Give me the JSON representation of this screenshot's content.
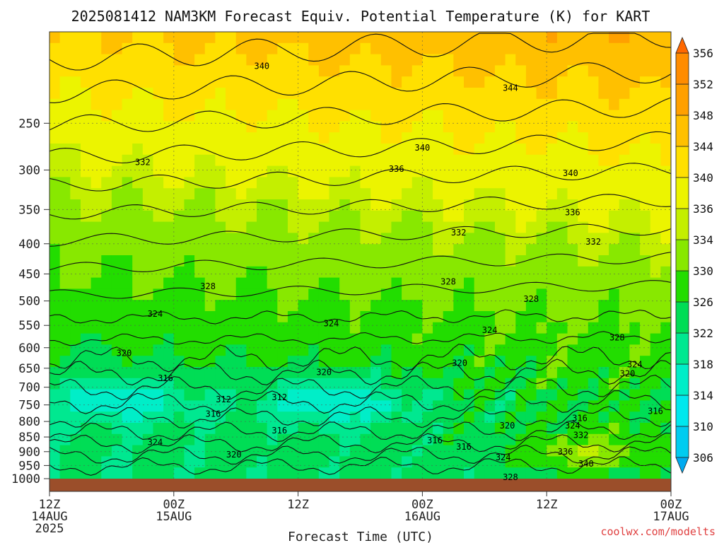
{
  "title": "2025081412 NAM3KM Forecast Equiv. Potential Temperature (K) for KART",
  "credit": "coolwx.com/modelts",
  "chart_data": {
    "type": "heatmap",
    "title": "2025081412 NAM3KM Forecast Equiv. Potential Temperature (K) for KART",
    "xlabel": "Forecast Time (UTC)",
    "ylabel": "",
    "x_range_hours": [
      0,
      60
    ],
    "y_range_hpa": [
      1000,
      175
    ],
    "y_scale": "log-pressure",
    "y_ticks": [
      250,
      300,
      350,
      400,
      450,
      500,
      550,
      600,
      650,
      700,
      750,
      800,
      850,
      900,
      950,
      1000
    ],
    "x_ticks": [
      {
        "hour": 0,
        "line1": "12Z",
        "line2": "14AUG",
        "line3": "2025"
      },
      {
        "hour": 12,
        "line1": "00Z",
        "line2": "15AUG",
        "line3": ""
      },
      {
        "hour": 24,
        "line1": "12Z",
        "line2": "",
        "line3": ""
      },
      {
        "hour": 36,
        "line1": "00Z",
        "line2": "16AUG",
        "line3": ""
      },
      {
        "hour": 48,
        "line1": "12Z",
        "line2": "",
        "line3": ""
      },
      {
        "hour": 60,
        "line1": "00Z",
        "line2": "17AUG",
        "line3": ""
      }
    ],
    "grid": true,
    "colorbar": {
      "levels": [
        306,
        310,
        314,
        318,
        322,
        326,
        330,
        334,
        336,
        340,
        344,
        348,
        352,
        356
      ],
      "colors": [
        "#00aaf0",
        "#00ccf0",
        "#00e8ee",
        "#00eec8",
        "#00e890",
        "#00dd55",
        "#22dd00",
        "#88e800",
        "#c4ef00",
        "#ecf400",
        "#ffe000",
        "#ffc000",
        "#ffa000",
        "#ff8c00",
        "#ff6800"
      ],
      "placement": "right"
    },
    "contour_labels": [
      {
        "t": 20.5,
        "p": 200,
        "v": "340"
      },
      {
        "t": 44.5,
        "p": 218,
        "v": "344"
      },
      {
        "t": 36.0,
        "p": 275,
        "v": "340"
      },
      {
        "t": 33.5,
        "p": 299,
        "v": "336"
      },
      {
        "t": 50.3,
        "p": 304,
        "v": "340"
      },
      {
        "t": 9.0,
        "p": 291,
        "v": "332"
      },
      {
        "t": 50.5,
        "p": 354,
        "v": "336"
      },
      {
        "t": 39.5,
        "p": 383,
        "v": "332"
      },
      {
        "t": 52.5,
        "p": 397,
        "v": "332"
      },
      {
        "t": 15.3,
        "p": 472,
        "v": "328"
      },
      {
        "t": 38.5,
        "p": 464,
        "v": "328"
      },
      {
        "t": 46.5,
        "p": 496,
        "v": "328"
      },
      {
        "t": 54.8,
        "p": 577,
        "v": "328"
      },
      {
        "t": 10.2,
        "p": 526,
        "v": "324"
      },
      {
        "t": 27.2,
        "p": 546,
        "v": "324"
      },
      {
        "t": 42.5,
        "p": 560,
        "v": "324"
      },
      {
        "t": 56.5,
        "p": 641,
        "v": "324"
      },
      {
        "t": 7.2,
        "p": 613,
        "v": "320"
      },
      {
        "t": 26.5,
        "p": 660,
        "v": "320"
      },
      {
        "t": 39.6,
        "p": 637,
        "v": "320"
      },
      {
        "t": 55.8,
        "p": 664,
        "v": "320"
      },
      {
        "t": 11.2,
        "p": 676,
        "v": "316"
      },
      {
        "t": 15.8,
        "p": 777,
        "v": "316"
      },
      {
        "t": 22.2,
        "p": 829,
        "v": "316"
      },
      {
        "t": 37.2,
        "p": 862,
        "v": "316"
      },
      {
        "t": 40.0,
        "p": 883,
        "v": "316"
      },
      {
        "t": 51.2,
        "p": 790,
        "v": "316"
      },
      {
        "t": 58.5,
        "p": 768,
        "v": "316"
      },
      {
        "t": 16.8,
        "p": 734,
        "v": "312"
      },
      {
        "t": 22.2,
        "p": 728,
        "v": "312"
      },
      {
        "t": 10.2,
        "p": 867,
        "v": "324"
      },
      {
        "t": 17.8,
        "p": 910,
        "v": "320"
      },
      {
        "t": 44.2,
        "p": 813,
        "v": "320"
      },
      {
        "t": 50.5,
        "p": 813,
        "v": "324"
      },
      {
        "t": 51.3,
        "p": 844,
        "v": "332"
      },
      {
        "t": 49.8,
        "p": 900,
        "v": "336"
      },
      {
        "t": 51.8,
        "p": 944,
        "v": "340"
      },
      {
        "t": 43.8,
        "p": 920,
        "v": "324"
      },
      {
        "t": 44.5,
        "p": 995,
        "v": "328"
      }
    ]
  }
}
